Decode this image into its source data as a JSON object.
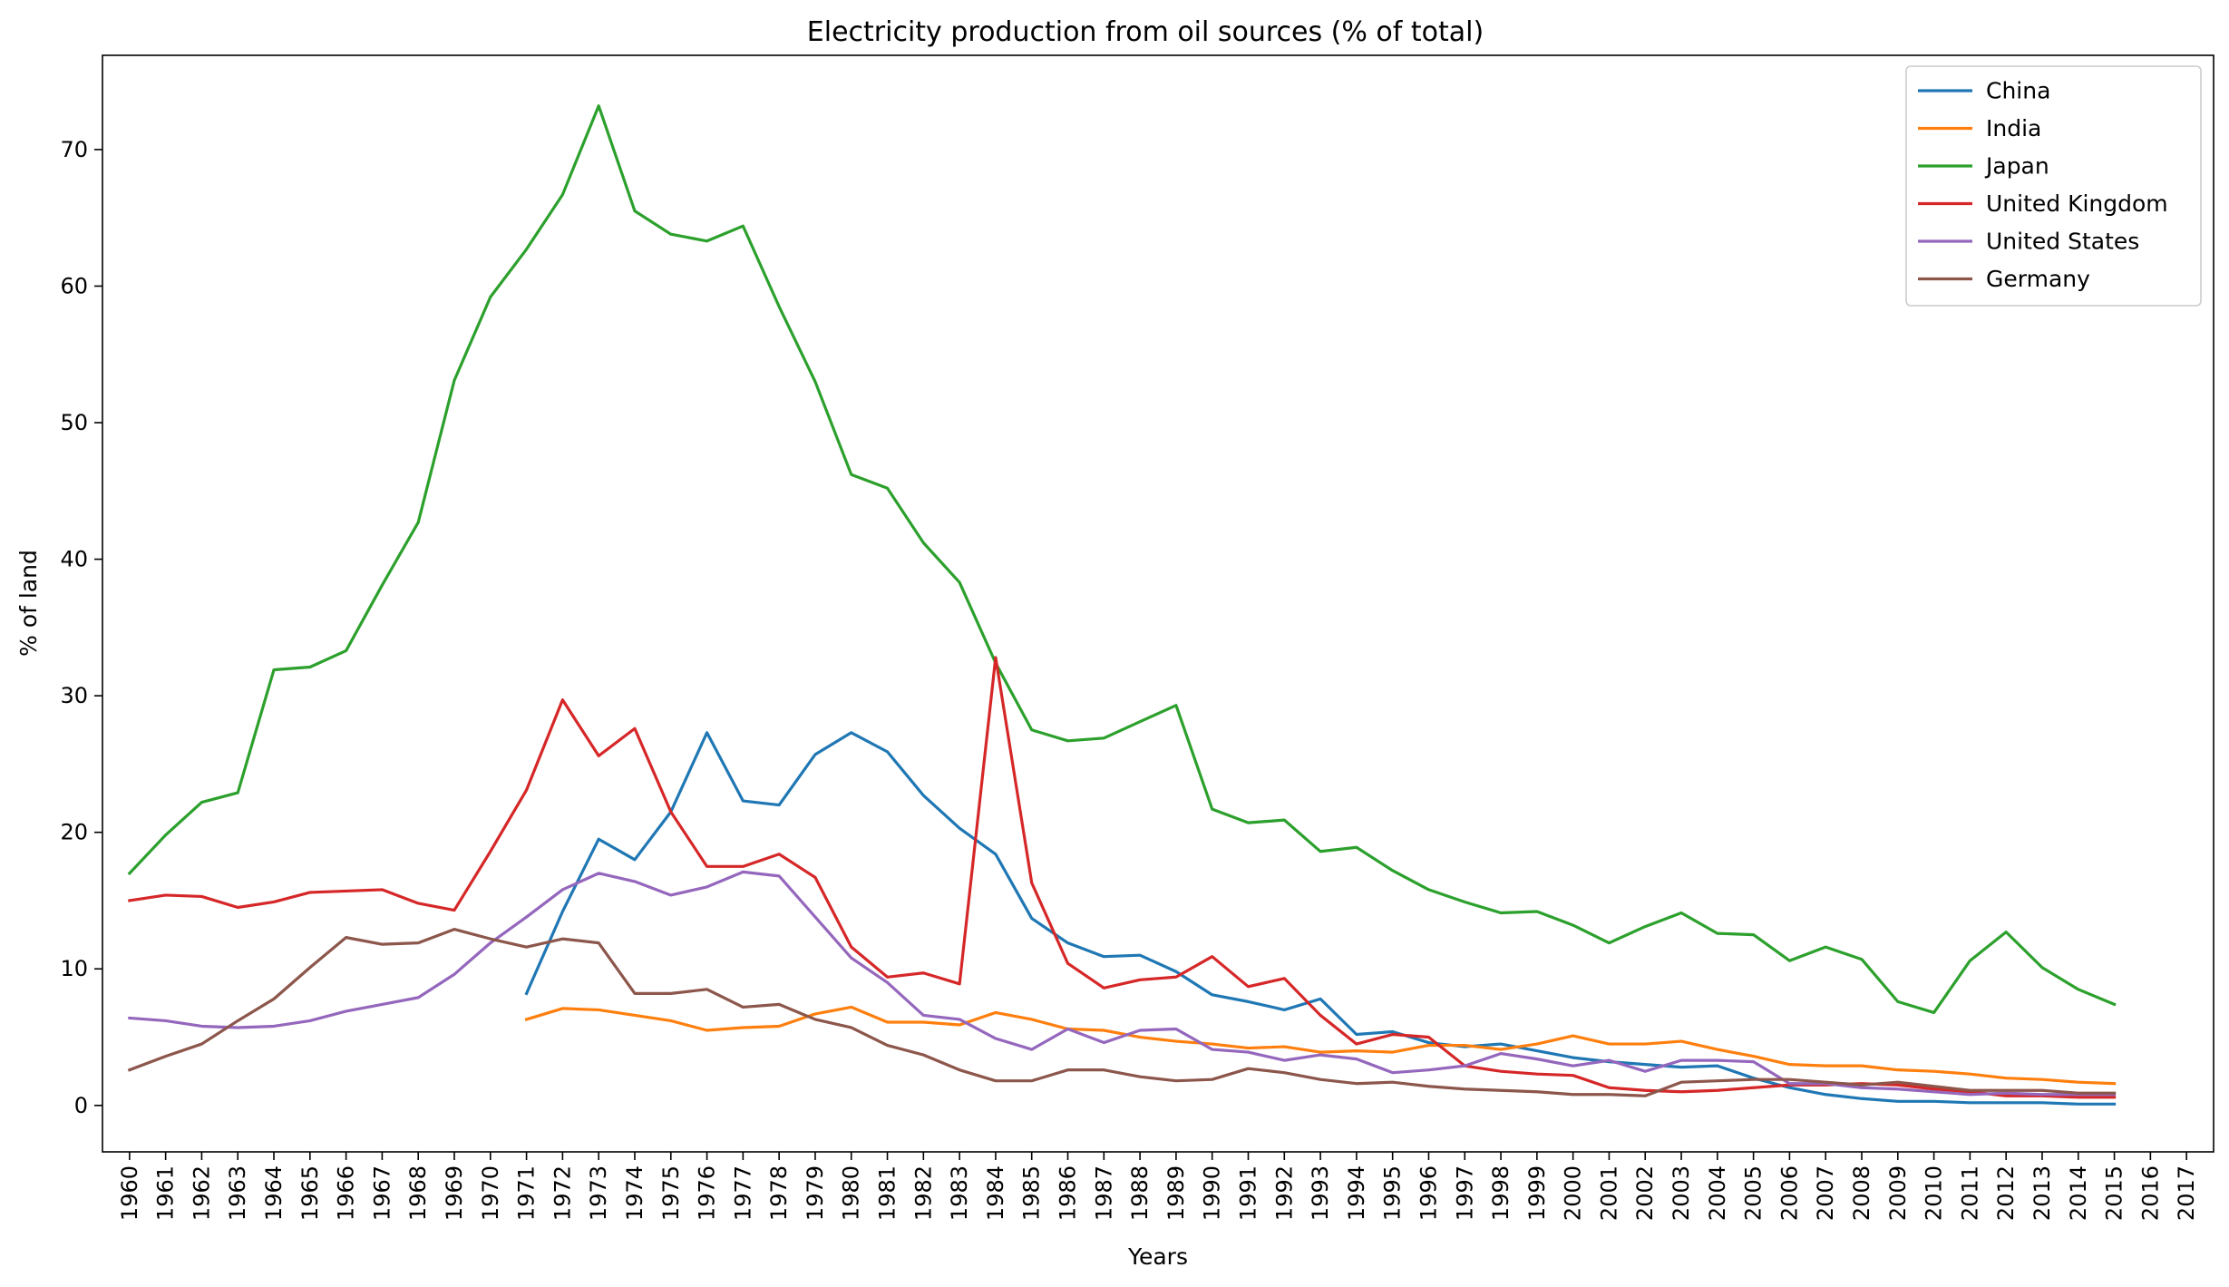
{
  "chart_data": {
    "type": "line",
    "title": "Electricity production from oil sources (% of total)",
    "xlabel": "Years",
    "ylabel": "% of land",
    "x": [
      1960,
      1961,
      1962,
      1963,
      1964,
      1965,
      1966,
      1967,
      1968,
      1969,
      1970,
      1971,
      1972,
      1973,
      1974,
      1975,
      1976,
      1977,
      1978,
      1979,
      1980,
      1981,
      1982,
      1983,
      1984,
      1985,
      1986,
      1987,
      1988,
      1989,
      1990,
      1991,
      1992,
      1993,
      1994,
      1995,
      1996,
      1997,
      1998,
      1999,
      2000,
      2001,
      2002,
      2003,
      2004,
      2005,
      2006,
      2007,
      2008,
      2009,
      2010,
      2011,
      2012,
      2013,
      2014,
      2015,
      2016,
      2017
    ],
    "x_tick_labels": [
      "1960",
      "1961",
      "1962",
      "1963",
      "1964",
      "1965",
      "1966",
      "1967",
      "1968",
      "1969",
      "1970",
      "1971",
      "1972",
      "1973",
      "1974",
      "1975",
      "1976",
      "1977",
      "1978",
      "1979",
      "1980",
      "1981",
      "1982",
      "1983",
      "1984",
      "1985",
      "1986",
      "1987",
      "1988",
      "1989",
      "1990",
      "1991",
      "1992",
      "1993",
      "1994",
      "1995",
      "1996",
      "1997",
      "1998",
      "1999",
      "2000",
      "2001",
      "2002",
      "2003",
      "2004",
      "2005",
      "2006",
      "2007",
      "2008",
      "2009",
      "2010",
      "2011",
      "2012",
      "2013",
      "2014",
      "2015",
      "2016",
      "2017"
    ],
    "y_ticks": [
      0,
      10,
      20,
      30,
      40,
      50,
      60,
      70
    ],
    "y_tick_labels": [
      "0",
      "10",
      "20",
      "30",
      "40",
      "50",
      "60",
      "70"
    ],
    "xlim": [
      1959.25,
      2017.75
    ],
    "ylim": [
      -3.4,
      76.9
    ],
    "grid": false,
    "legend_position": "top-right",
    "series": [
      {
        "name": "China",
        "color": "#1f77b4",
        "values": [
          null,
          null,
          null,
          null,
          null,
          null,
          null,
          null,
          null,
          null,
          null,
          8.2,
          14.2,
          19.5,
          18.0,
          21.5,
          27.3,
          22.3,
          22.0,
          25.7,
          27.3,
          25.9,
          22.7,
          20.3,
          18.4,
          13.7,
          11.9,
          10.9,
          11.0,
          9.8,
          8.1,
          7.6,
          7.0,
          7.8,
          5.2,
          5.4,
          4.6,
          4.3,
          4.5,
          4.0,
          3.5,
          3.2,
          3.0,
          2.8,
          2.9,
          2.0,
          1.3,
          0.8,
          0.5,
          0.3,
          0.3,
          0.2,
          0.2,
          0.2,
          0.1,
          0.1,
          null,
          null
        ]
      },
      {
        "name": "India",
        "color": "#ff7f0e",
        "values": [
          null,
          null,
          null,
          null,
          null,
          null,
          null,
          null,
          null,
          null,
          null,
          6.3,
          7.1,
          7.0,
          6.6,
          6.2,
          5.5,
          5.7,
          5.8,
          6.7,
          7.2,
          6.1,
          6.1,
          5.9,
          6.8,
          6.3,
          5.6,
          5.5,
          5.0,
          4.7,
          4.5,
          4.2,
          4.3,
          3.9,
          4.0,
          3.9,
          4.4,
          4.4,
          4.1,
          4.5,
          5.1,
          4.5,
          4.5,
          4.7,
          4.1,
          3.6,
          3.0,
          2.9,
          2.9,
          2.6,
          2.5,
          2.3,
          2.0,
          1.9,
          1.7,
          1.6,
          null,
          null
        ]
      },
      {
        "name": "Japan",
        "color": "#2ca02c",
        "values": [
          17.0,
          19.8,
          22.2,
          22.9,
          31.9,
          32.1,
          33.3,
          38.1,
          42.7,
          53.1,
          59.2,
          62.7,
          66.7,
          73.2,
          65.5,
          63.8,
          63.3,
          64.4,
          58.5,
          53.0,
          46.2,
          45.2,
          41.2,
          38.3,
          32.4,
          27.5,
          26.7,
          26.9,
          28.1,
          29.3,
          21.7,
          20.7,
          20.9,
          18.6,
          18.9,
          17.2,
          15.8,
          14.9,
          14.1,
          14.2,
          13.2,
          11.9,
          13.1,
          14.1,
          12.6,
          12.5,
          10.6,
          11.6,
          10.7,
          7.6,
          6.8,
          10.6,
          12.7,
          10.1,
          8.5,
          7.4,
          null,
          null
        ]
      },
      {
        "name": "United Kingdom",
        "color": "#d62728",
        "values": [
          15.0,
          15.4,
          15.3,
          14.5,
          14.9,
          15.6,
          15.7,
          15.8,
          14.8,
          14.3,
          18.6,
          23.1,
          29.7,
          25.6,
          27.6,
          21.5,
          17.5,
          17.5,
          18.4,
          16.7,
          11.6,
          9.4,
          9.7,
          8.9,
          32.8,
          16.3,
          10.4,
          8.6,
          9.2,
          9.4,
          10.9,
          8.7,
          9.3,
          6.6,
          4.5,
          5.2,
          5.0,
          2.9,
          2.5,
          2.3,
          2.2,
          1.3,
          1.1,
          1.0,
          1.1,
          1.3,
          1.5,
          1.5,
          1.6,
          1.5,
          1.2,
          1.0,
          0.7,
          0.7,
          0.6,
          0.6,
          null,
          null
        ]
      },
      {
        "name": "United States",
        "color": "#9467bd",
        "values": [
          6.4,
          6.2,
          5.8,
          5.7,
          5.8,
          6.2,
          6.9,
          7.4,
          7.9,
          9.6,
          11.9,
          13.8,
          15.8,
          17.0,
          16.4,
          15.4,
          16.0,
          17.1,
          16.8,
          13.8,
          10.8,
          9.0,
          6.6,
          6.3,
          4.9,
          4.1,
          5.6,
          4.6,
          5.5,
          5.6,
          4.1,
          3.9,
          3.3,
          3.7,
          3.4,
          2.4,
          2.6,
          2.9,
          3.8,
          3.4,
          2.9,
          3.3,
          2.5,
          3.3,
          3.3,
          3.2,
          1.6,
          1.6,
          1.3,
          1.2,
          1.0,
          0.8,
          0.9,
          0.8,
          0.8,
          0.8,
          null,
          null
        ]
      },
      {
        "name": "Germany",
        "color": "#8c564b",
        "values": [
          2.6,
          3.6,
          4.5,
          6.2,
          7.8,
          10.1,
          12.3,
          11.8,
          11.9,
          12.9,
          12.2,
          11.6,
          12.2,
          11.9,
          8.2,
          8.2,
          8.5,
          7.2,
          7.4,
          6.3,
          5.7,
          4.4,
          3.7,
          2.6,
          1.8,
          1.8,
          2.6,
          2.6,
          2.1,
          1.8,
          1.9,
          2.7,
          2.4,
          1.9,
          1.6,
          1.7,
          1.4,
          1.2,
          1.1,
          1.0,
          0.8,
          0.8,
          0.7,
          1.7,
          1.8,
          1.9,
          1.9,
          1.7,
          1.5,
          1.7,
          1.4,
          1.1,
          1.1,
          1.1,
          0.9,
          0.9,
          null,
          null
        ]
      }
    ]
  }
}
